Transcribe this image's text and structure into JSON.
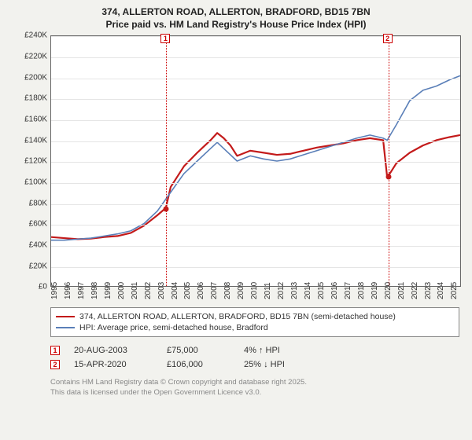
{
  "title_line1": "374, ALLERTON ROAD, ALLERTON, BRADFORD, BD15 7BN",
  "title_line2": "Price paid vs. HM Land Registry's House Price Index (HPI)",
  "chart": {
    "type": "line",
    "background_color": "#ffffff",
    "page_bg": "#f2f2ee",
    "grid_color": "#e5e5e5",
    "border_color": "#666666",
    "ylim": [
      0,
      240000
    ],
    "ytick_step": 20000,
    "yticks": [
      "£0",
      "£20K",
      "£40K",
      "£60K",
      "£80K",
      "£100K",
      "£120K",
      "£140K",
      "£160K",
      "£180K",
      "£200K",
      "£220K",
      "£240K"
    ],
    "xlim": [
      1995,
      2025.8
    ],
    "xticks": [
      1995,
      1996,
      1997,
      1998,
      1999,
      2000,
      2001,
      2002,
      2003,
      2004,
      2005,
      2006,
      2007,
      2008,
      2009,
      2010,
      2011,
      2012,
      2013,
      2014,
      2015,
      2016,
      2017,
      2018,
      2019,
      2020,
      2021,
      2022,
      2023,
      2024,
      2025
    ],
    "label_fontsize": 10,
    "title_fontsize": 12,
    "series": [
      {
        "name": "property",
        "color": "#c31a1a",
        "width": 2.2,
        "data": [
          [
            1995,
            47000
          ],
          [
            1996,
            46000
          ],
          [
            1997,
            45000
          ],
          [
            1998,
            45500
          ],
          [
            1999,
            47000
          ],
          [
            2000,
            48000
          ],
          [
            2001,
            51000
          ],
          [
            2002,
            58000
          ],
          [
            2003,
            68000
          ],
          [
            2003.64,
            75000
          ],
          [
            2004,
            95000
          ],
          [
            2005,
            115000
          ],
          [
            2006,
            128000
          ],
          [
            2007,
            140000
          ],
          [
            2007.5,
            147000
          ],
          [
            2008,
            142000
          ],
          [
            2008.5,
            135000
          ],
          [
            2009,
            125000
          ],
          [
            2010,
            130000
          ],
          [
            2011,
            128000
          ],
          [
            2012,
            126000
          ],
          [
            2013,
            127000
          ],
          [
            2014,
            130000
          ],
          [
            2015,
            133000
          ],
          [
            2016,
            135000
          ],
          [
            2017,
            137000
          ],
          [
            2018,
            140000
          ],
          [
            2019,
            142000
          ],
          [
            2020,
            140000
          ],
          [
            2020.29,
            106000
          ],
          [
            2020.5,
            108000
          ],
          [
            2021,
            118000
          ],
          [
            2022,
            128000
          ],
          [
            2023,
            135000
          ],
          [
            2024,
            140000
          ],
          [
            2025,
            143000
          ],
          [
            2025.8,
            145000
          ]
        ]
      },
      {
        "name": "hpi",
        "color": "#5a7fb8",
        "width": 1.6,
        "data": [
          [
            1995,
            44000
          ],
          [
            1996,
            44000
          ],
          [
            1997,
            45000
          ],
          [
            1998,
            46000
          ],
          [
            1999,
            48000
          ],
          [
            2000,
            50000
          ],
          [
            2001,
            53000
          ],
          [
            2002,
            60000
          ],
          [
            2003,
            72000
          ],
          [
            2004,
            90000
          ],
          [
            2005,
            108000
          ],
          [
            2006,
            120000
          ],
          [
            2007,
            132000
          ],
          [
            2007.5,
            138000
          ],
          [
            2008,
            132000
          ],
          [
            2009,
            120000
          ],
          [
            2010,
            125000
          ],
          [
            2011,
            122000
          ],
          [
            2012,
            120000
          ],
          [
            2013,
            122000
          ],
          [
            2014,
            126000
          ],
          [
            2015,
            130000
          ],
          [
            2016,
            134000
          ],
          [
            2017,
            138000
          ],
          [
            2018,
            142000
          ],
          [
            2019,
            145000
          ],
          [
            2020,
            142000
          ],
          [
            2020.3,
            140000
          ],
          [
            2021,
            155000
          ],
          [
            2022,
            178000
          ],
          [
            2023,
            188000
          ],
          [
            2024,
            192000
          ],
          [
            2025,
            198000
          ],
          [
            2025.8,
            202000
          ]
        ]
      }
    ],
    "vlines": [
      {
        "x": 2003.64,
        "label": "1"
      },
      {
        "x": 2020.29,
        "label": "2"
      }
    ],
    "points": [
      {
        "x": 2003.64,
        "y": 75000,
        "color": "#c31a1a"
      },
      {
        "x": 2020.29,
        "y": 106000,
        "color": "#c31a1a"
      }
    ]
  },
  "legend": {
    "series1": {
      "label": "374, ALLERTON ROAD, ALLERTON, BRADFORD, BD15 7BN (semi-detached house)",
      "color": "#c31a1a"
    },
    "series2": {
      "label": "HPI: Average price, semi-detached house, Bradford",
      "color": "#5a7fb8"
    }
  },
  "transactions": [
    {
      "marker": "1",
      "date": "20-AUG-2003",
      "price": "£75,000",
      "pct": "4% ↑ HPI"
    },
    {
      "marker": "2",
      "date": "15-APR-2020",
      "price": "£106,000",
      "pct": "25% ↓ HPI"
    }
  ],
  "attribution_line1": "Contains HM Land Registry data © Crown copyright and database right 2025.",
  "attribution_line2": "This data is licensed under the Open Government Licence v3.0."
}
